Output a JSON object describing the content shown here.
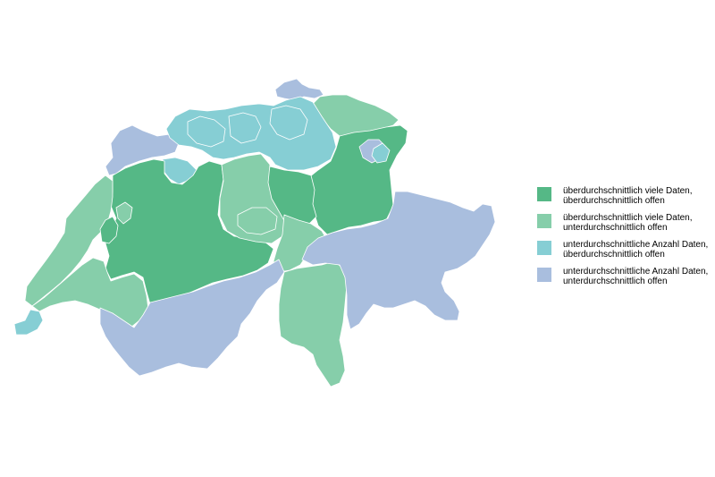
{
  "colors": {
    "dark_green": "#55b886",
    "light_green": "#86ceaa",
    "cyan": "#86ced4",
    "lavender": "#a9bede",
    "border": "#ffffff"
  },
  "legend": {
    "items": [
      {
        "color": "#55b886",
        "line1": "überdurchschnittlich viele Daten,",
        "line2": "überdurchschnittlich offen"
      },
      {
        "color": "#86ceaa",
        "line1": "überdurchschnittlich viele Daten,",
        "line2": "unterdurchschnittlich offen"
      },
      {
        "color": "#86ced4",
        "line1": "unterdurchschnittliche Anzahl Daten,",
        "line2": "überdurchschnittlich offen"
      },
      {
        "color": "#a9bede",
        "line1": "unterdurchschnittliche Anzahl Daten,",
        "line2": "unterdurchschnittlich offen"
      }
    ]
  }
}
